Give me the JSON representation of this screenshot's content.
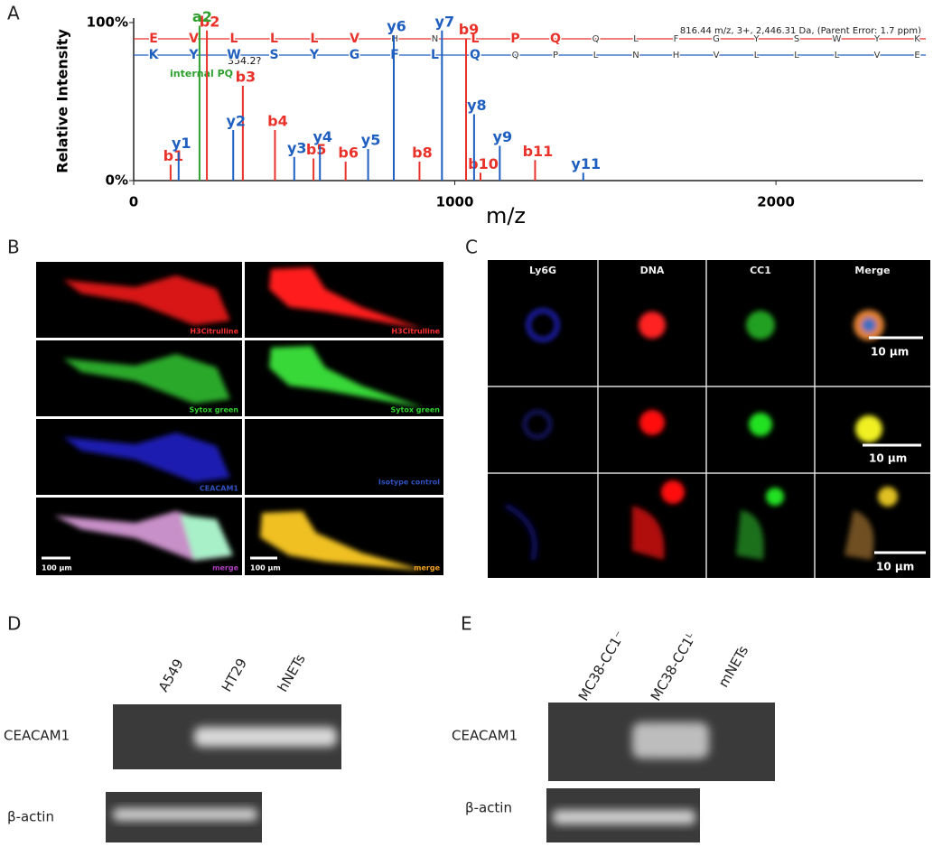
{
  "panel_a": {
    "label": "A",
    "y_label": "Relative Intensity",
    "x_label": "m/z",
    "xlim": [
      0,
      2430
    ],
    "ylim": [
      0,
      100
    ],
    "xticks": [
      0,
      1000,
      2000
    ],
    "yticks": [
      {
        "value": 0,
        "label": "0%"
      },
      {
        "value": 100,
        "label": "100%"
      }
    ],
    "precursor": "816.44 m/z, 3+, 2,446.31 Da, (Parent Error: 1.7 ppm)",
    "annotations": [
      "internal PQ",
      "354.2?"
    ],
    "sequences": [
      {
        "color": "#e8322a",
        "letters": [
          "E",
          "V",
          "L",
          "L",
          "L",
          "V",
          "H",
          "N",
          "L",
          "P",
          "Q",
          "Q",
          "L",
          "F",
          "G",
          "Y",
          "S",
          "W",
          "Y",
          "K"
        ],
        "matched": [
          true,
          true,
          true,
          true,
          true,
          true,
          false,
          false,
          true,
          true,
          true,
          false,
          false,
          false,
          false,
          false,
          false,
          false,
          false,
          false
        ]
      },
      {
        "color": "#1f5fbf",
        "letters": [
          "K",
          "Y",
          "W",
          "S",
          "Y",
          "G",
          "F",
          "L",
          "Q",
          "Q",
          "P",
          "L",
          "N",
          "H",
          "V",
          "L",
          "L",
          "L",
          "V",
          "E"
        ],
        "matched": [
          true,
          true,
          true,
          true,
          true,
          true,
          true,
          true,
          true,
          false,
          false,
          false,
          false,
          false,
          false,
          false,
          false,
          false,
          false,
          false
        ]
      }
    ],
    "peak_groups": [
      {
        "color": "#e8322a",
        "labels": [
          "b1",
          "b2",
          "b3",
          "b4",
          "b5",
          "b6",
          "b8",
          "b9",
          "b10",
          "b11"
        ],
        "mz": [
          115,
          228,
          340,
          440,
          560,
          660,
          890,
          1035,
          1080,
          1250
        ],
        "intensity": [
          10,
          95,
          60,
          32,
          14,
          12,
          12,
          90,
          5,
          13
        ]
      },
      {
        "color": "#1f5fbf",
        "labels": [
          "y1",
          "y2",
          "y3",
          "y4",
          "y5",
          "y6",
          "y7",
          "y8",
          "y9",
          "y11"
        ],
        "mz": [
          140,
          310,
          500,
          580,
          730,
          810,
          960,
          1060,
          1140,
          1400
        ],
        "intensity": [
          18,
          32,
          15,
          22,
          20,
          92,
          95,
          42,
          22,
          5
        ]
      },
      {
        "color": "#2ea02e",
        "labels": [
          "a2"
        ],
        "mz": [
          205
        ],
        "intensity": [
          98
        ]
      }
    ]
  },
  "panel_b": {
    "label": "B",
    "tiles": [
      "H3Citrulline",
      "H3Citrulline",
      "Sytox green",
      "Sytox green",
      "CEACAM1",
      "Isotype control",
      "merge",
      "merge"
    ],
    "scale_bars": [
      "100 µm",
      "100 µm"
    ]
  },
  "panel_c": {
    "label": "C",
    "columns": [
      "Ly6G",
      "DNA",
      "CC1",
      "Merge"
    ],
    "scale_bars": [
      "10 µm",
      "10 µm",
      "10 µm"
    ]
  },
  "panel_d": {
    "label": "D",
    "lanes": [
      "A549",
      "HT29",
      "hNETs"
    ],
    "rows": [
      "CEACAM1",
      "β-actin"
    ]
  },
  "panel_e": {
    "label": "E",
    "lanes": [
      "MC38-CC1⁻",
      "MC38-CC1ᴸ",
      "mNETs"
    ],
    "rows": [
      "CEACAM1",
      "β-actin"
    ]
  }
}
